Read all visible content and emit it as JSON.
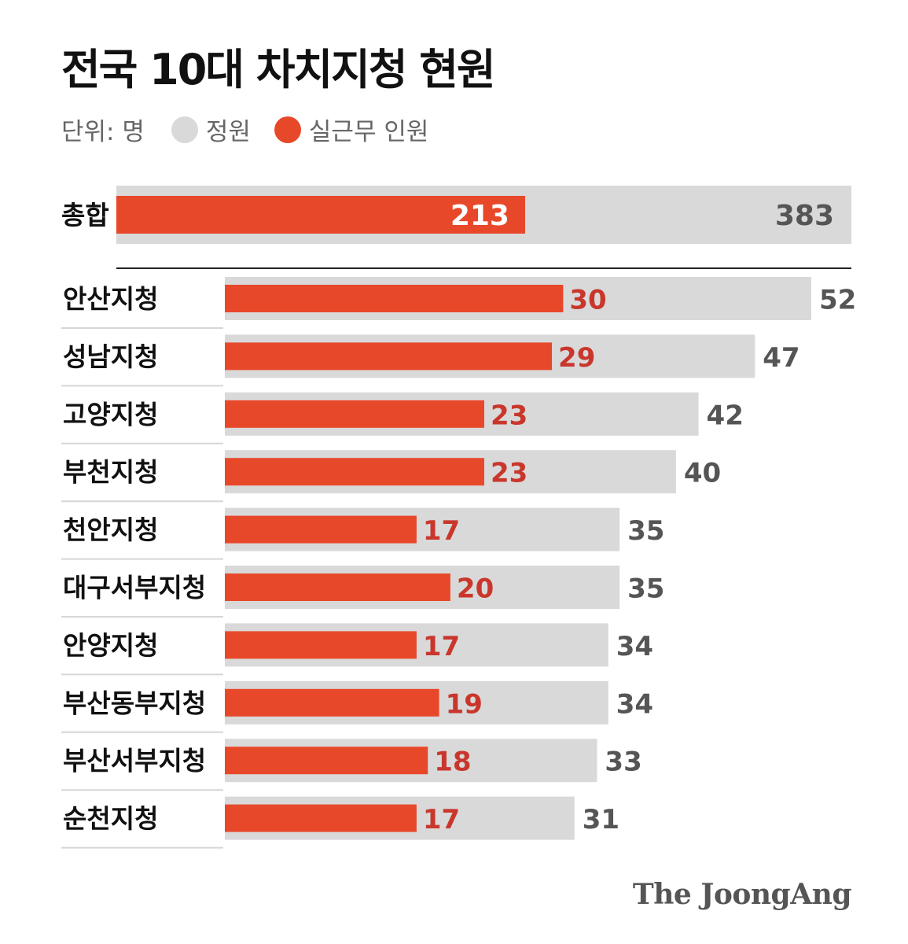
{
  "title": "전국 10대 차치지청 현원",
  "legend": {
    "unit": "단위: 명",
    "quota_label": "정원",
    "actual_label": "실근무 인원"
  },
  "colors": {
    "quota": "#d9d9d9",
    "actual": "#e8482a",
    "label_actual": "#c9372c",
    "label_quota": "#555555",
    "text": "#111111"
  },
  "brand": "The JoongAng",
  "chart_data": {
    "type": "bar",
    "orientation": "horizontal",
    "categories": [
      "안산지청",
      "성남지청",
      "고양지청",
      "부천지청",
      "천안지청",
      "대구서부지청",
      "안양지청",
      "부산동부지청",
      "부산서부지청",
      "순천지청"
    ],
    "series": [
      {
        "name": "정원",
        "values": [
          52,
          47,
          42,
          40,
          35,
          35,
          34,
          34,
          33,
          31
        ]
      },
      {
        "name": "실근무 인원",
        "values": [
          30,
          29,
          23,
          23,
          17,
          20,
          17,
          19,
          18,
          17
        ]
      }
    ],
    "total": {
      "label": "총합",
      "quota": 383,
      "actual": 213
    }
  }
}
